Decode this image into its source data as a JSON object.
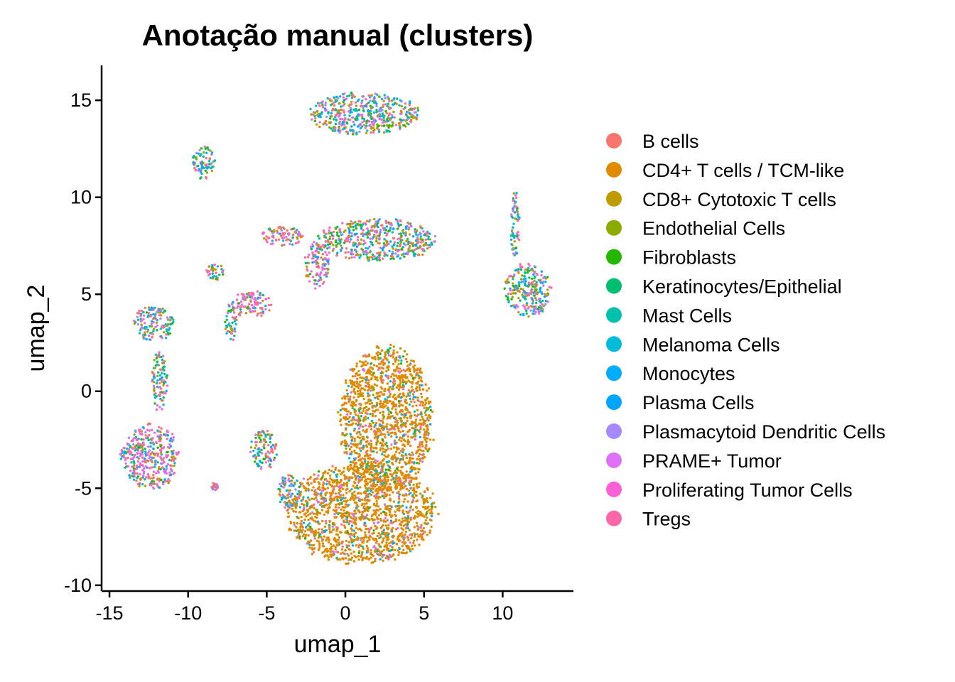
{
  "chart_data": {
    "type": "scatter",
    "title": "Anotação manual (clusters)",
    "xlabel": "umap_1",
    "ylabel": "umap_2",
    "xlim": [
      -15.5,
      14.5
    ],
    "ylim": [
      -10.3,
      16.8
    ],
    "x_ticks": [
      -15,
      -10,
      -5,
      0,
      5,
      10
    ],
    "x_tick_labels": [
      "-15",
      "-10",
      "-5",
      "0",
      "5",
      "10"
    ],
    "y_ticks": [
      -10,
      -5,
      0,
      5,
      10,
      15
    ],
    "y_tick_labels": [
      "-10",
      "-5",
      "0",
      "5",
      "10",
      "15"
    ],
    "grid": false,
    "legend_position": "right",
    "series": [
      {
        "name": "B cells",
        "color": "#F8766D"
      },
      {
        "name": "CD4+ T cells / TCM-like",
        "color": "#E18A00"
      },
      {
        "name": "CD8+ Cytotoxic T cells",
        "color": "#BE9C00"
      },
      {
        "name": "Endothelial Cells",
        "color": "#8CAB00"
      },
      {
        "name": "Fibroblasts",
        "color": "#24B700"
      },
      {
        "name": "Keratinocytes/Epithelial",
        "color": "#00BE70"
      },
      {
        "name": "Mast Cells",
        "color": "#00C1AB"
      },
      {
        "name": "Melanoma Cells",
        "color": "#00BBDA"
      },
      {
        "name": "Monocytes",
        "color": "#00ACFC"
      },
      {
        "name": "Plasma Cells",
        "color": "#00A5FF"
      },
      {
        "name": "Plasmacytoid Dendritic Cells",
        "color": "#A58AFF"
      },
      {
        "name": "PRAME+ Tumor",
        "color": "#DF70F8"
      },
      {
        "name": "Proliferating Tumor Cells",
        "color": "#FB61D7"
      },
      {
        "name": "Tregs",
        "color": "#FF66A8"
      }
    ],
    "clusters": [
      {
        "cx": 1.2,
        "cy": 14.3,
        "rx": 3.5,
        "ry": 1.1,
        "mix": "mixed"
      },
      {
        "cx": -9.0,
        "cy": 11.8,
        "rx": 0.7,
        "ry": 0.9,
        "mix": "mixed"
      },
      {
        "cx": 2.0,
        "cy": 7.8,
        "rx": 3.8,
        "ry": 1.1,
        "mix": "mixed"
      },
      {
        "cx": -4.0,
        "cy": 8.0,
        "rx": 1.4,
        "ry": 0.5,
        "mix": "pink"
      },
      {
        "cx": -1.8,
        "cy": 6.5,
        "rx": 0.8,
        "ry": 1.2,
        "mix": "pink"
      },
      {
        "cx": -8.3,
        "cy": 6.1,
        "rx": 0.6,
        "ry": 0.5,
        "mix": "mixed"
      },
      {
        "cx": -6.0,
        "cy": 4.5,
        "rx": 1.3,
        "ry": 0.7,
        "mix": "pink"
      },
      {
        "cx": -7.3,
        "cy": 3.5,
        "rx": 0.4,
        "ry": 1.0,
        "mix": "mixed"
      },
      {
        "cx": -12.2,
        "cy": 3.5,
        "rx": 1.3,
        "ry": 0.9,
        "mix": "mixed"
      },
      {
        "cx": -11.8,
        "cy": 0.5,
        "rx": 0.5,
        "ry": 1.6,
        "mix": "mixed"
      },
      {
        "cx": -12.4,
        "cy": -3.4,
        "rx": 1.9,
        "ry": 1.7,
        "mix": "pink"
      },
      {
        "cx": -8.3,
        "cy": -4.9,
        "rx": 0.2,
        "ry": 0.2,
        "mix": "pink"
      },
      {
        "cx": -5.2,
        "cy": -3.0,
        "rx": 0.9,
        "ry": 1.0,
        "mix": "mixed"
      },
      {
        "cx": -3.6,
        "cy": -5.2,
        "rx": 0.8,
        "ry": 0.9,
        "mix": "mixed"
      },
      {
        "cx": 2.6,
        "cy": -1.5,
        "rx": 3.0,
        "ry": 3.8,
        "mix": "orange"
      },
      {
        "cx": 1.0,
        "cy": -6.3,
        "rx": 4.8,
        "ry": 2.6,
        "mix": "orange"
      },
      {
        "cx": 11.6,
        "cy": 5.2,
        "rx": 1.5,
        "ry": 1.4,
        "mix": "mixed"
      },
      {
        "cx": 10.8,
        "cy": 8.5,
        "rx": 0.3,
        "ry": 1.8,
        "mix": "mixed"
      }
    ]
  }
}
